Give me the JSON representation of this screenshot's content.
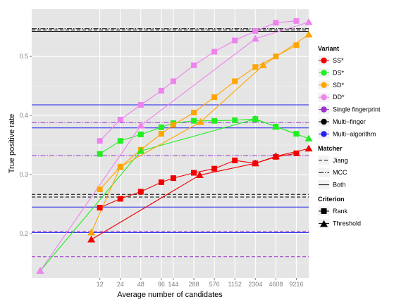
{
  "chart_data": {
    "type": "line",
    "xlabel": "Average number of candidates",
    "ylabel": "True positive rate",
    "x_ticks": [
      12,
      24,
      48,
      96,
      144,
      288,
      576,
      1152,
      2304,
      4608,
      9216
    ],
    "x_tick_labels": [
      "12",
      "24",
      "48",
      "96",
      "144",
      "288",
      "576",
      "1152",
      "2304",
      "4608",
      "9216"
    ],
    "y_ticks": [
      0.2,
      0.3,
      0.4,
      0.5
    ],
    "y_tick_labels": [
      "0.2",
      "0.3",
      "0.4",
      "0.5"
    ],
    "xlim": [
      1.2,
      14000
    ],
    "ylim": [
      0.125,
      0.58
    ],
    "x_scale": "log",
    "grid": true,
    "legend_position": "right",
    "colors": {
      "SS": "#f20000",
      "DS": "#22ee22",
      "SD": "#ffa500",
      "DD": "#ee82ee",
      "single": "#9a32cd",
      "multifinger": "#000000",
      "multialgo": "#1f1fee",
      "panel": "#e5e5e5",
      "grid_major": "#ffffff",
      "grid_minor": "#f2f2f2"
    },
    "series": [
      {
        "name": "SS*",
        "criterion": "Rank",
        "color_key": "SS",
        "points": [
          [
            12,
            0.244
          ],
          [
            24,
            0.259
          ],
          [
            48,
            0.271
          ],
          [
            96,
            0.287
          ],
          [
            144,
            0.294
          ],
          [
            288,
            0.303
          ],
          [
            576,
            0.31
          ],
          [
            1152,
            0.324
          ],
          [
            2304,
            0.319
          ],
          [
            4608,
            0.33
          ],
          [
            9216,
            0.336
          ]
        ]
      },
      {
        "name": "DS*",
        "criterion": "Rank",
        "color_key": "DS",
        "points": [
          [
            12,
            0.335
          ],
          [
            24,
            0.357
          ],
          [
            48,
            0.368
          ],
          [
            96,
            0.38
          ],
          [
            144,
            0.387
          ],
          [
            288,
            0.391
          ],
          [
            576,
            0.391
          ],
          [
            1152,
            0.392
          ],
          [
            2304,
            0.394
          ],
          [
            4608,
            0.381
          ],
          [
            9216,
            0.369
          ]
        ]
      },
      {
        "name": "SD*",
        "criterion": "Rank",
        "color_key": "SD",
        "points": [
          [
            12,
            0.275
          ],
          [
            24,
            0.313
          ],
          [
            48,
            0.342
          ],
          [
            96,
            0.369
          ],
          [
            144,
            0.384
          ],
          [
            288,
            0.405
          ],
          [
            576,
            0.431
          ],
          [
            1152,
            0.458
          ],
          [
            2304,
            0.482
          ],
          [
            4608,
            0.5
          ],
          [
            9216,
            0.519
          ]
        ]
      },
      {
        "name": "DD*",
        "criterion": "Rank",
        "color_key": "DD",
        "points": [
          [
            12,
            0.357
          ],
          [
            24,
            0.393
          ],
          [
            48,
            0.418
          ],
          [
            96,
            0.442
          ],
          [
            144,
            0.458
          ],
          [
            288,
            0.485
          ],
          [
            576,
            0.508
          ],
          [
            1152,
            0.527
          ],
          [
            2304,
            0.543
          ],
          [
            4608,
            0.557
          ],
          [
            9216,
            0.56
          ]
        ]
      },
      {
        "name": "SS*",
        "criterion": "Threshold",
        "color_key": "SS",
        "points": [
          [
            9,
            0.19
          ],
          [
            350,
            0.299
          ],
          [
            2304,
            0.319
          ],
          [
            4608,
            0.331
          ],
          [
            14000,
            0.344
          ]
        ]
      },
      {
        "name": "DS*",
        "criterion": "Threshold",
        "color_key": "DS",
        "points": [
          [
            1.6,
            0.137
          ],
          [
            48,
            0.34
          ],
          [
            2304,
            0.394
          ],
          [
            4608,
            0.381
          ],
          [
            14000,
            0.361
          ]
        ]
      },
      {
        "name": "SD*",
        "criterion": "Threshold",
        "color_key": "SD",
        "points": [
          [
            9,
            0.202
          ],
          [
            24,
            0.313
          ],
          [
            360,
            0.389
          ],
          [
            3000,
            0.485
          ],
          [
            14000,
            0.537
          ]
        ]
      },
      {
        "name": "DD*",
        "criterion": "Threshold",
        "color_key": "DD",
        "points": [
          [
            1.6,
            0.137
          ],
          [
            48,
            0.383
          ],
          [
            2304,
            0.53
          ],
          [
            14000,
            0.558
          ]
        ]
      }
    ],
    "reference_lines": [
      {
        "y": 0.5445,
        "color_key": "multifinger",
        "matcher": "Jiang"
      },
      {
        "y": 0.547,
        "color_key": "multifinger",
        "matcher": "MCC"
      },
      {
        "y": 0.5425,
        "color_key": "multifinger",
        "matcher": "Both"
      },
      {
        "y": 0.262,
        "color_key": "multifinger",
        "matcher": "Jiang"
      },
      {
        "y": 0.2665,
        "color_key": "multifinger",
        "matcher": "Jiang"
      },
      {
        "y": 0.388,
        "color_key": "single",
        "matcher": "MCC"
      },
      {
        "y": 0.332,
        "color_key": "single",
        "matcher": "MCC"
      },
      {
        "y": 0.161,
        "color_key": "single",
        "matcher": "Jiang"
      },
      {
        "y": 0.204,
        "color_key": "single",
        "matcher": "Jiang"
      },
      {
        "y": 0.418,
        "color_key": "multialgo",
        "matcher": "Both"
      },
      {
        "y": 0.379,
        "color_key": "multialgo",
        "matcher": "Both"
      },
      {
        "y": 0.245,
        "color_key": "multialgo",
        "matcher": "Both"
      },
      {
        "y": 0.202,
        "color_key": "multialgo",
        "matcher": "Both"
      }
    ]
  },
  "legend": {
    "variant": {
      "title": "Variant",
      "items": [
        {
          "label": "SS*",
          "color_key": "SS"
        },
        {
          "label": "DS*",
          "color_key": "DS"
        },
        {
          "label": "SD*",
          "color_key": "SD"
        },
        {
          "label": "DD*",
          "color_key": "DD"
        },
        {
          "label": "Single fingerprint",
          "color_key": "single"
        },
        {
          "label": "Multi−finger",
          "color_key": "multifinger"
        },
        {
          "label": "Multi−algorithm",
          "color_key": "multialgo"
        }
      ]
    },
    "matcher": {
      "title": "Matcher",
      "items": [
        {
          "label": "Jiang",
          "style": "dashed"
        },
        {
          "label": "MCC",
          "style": "dotdash"
        },
        {
          "label": "Both",
          "style": "solid"
        }
      ]
    },
    "criterion": {
      "title": "Criterion",
      "items": [
        {
          "label": "Rank",
          "shape": "square"
        },
        {
          "label": "Threshold",
          "shape": "triangle"
        }
      ]
    }
  }
}
